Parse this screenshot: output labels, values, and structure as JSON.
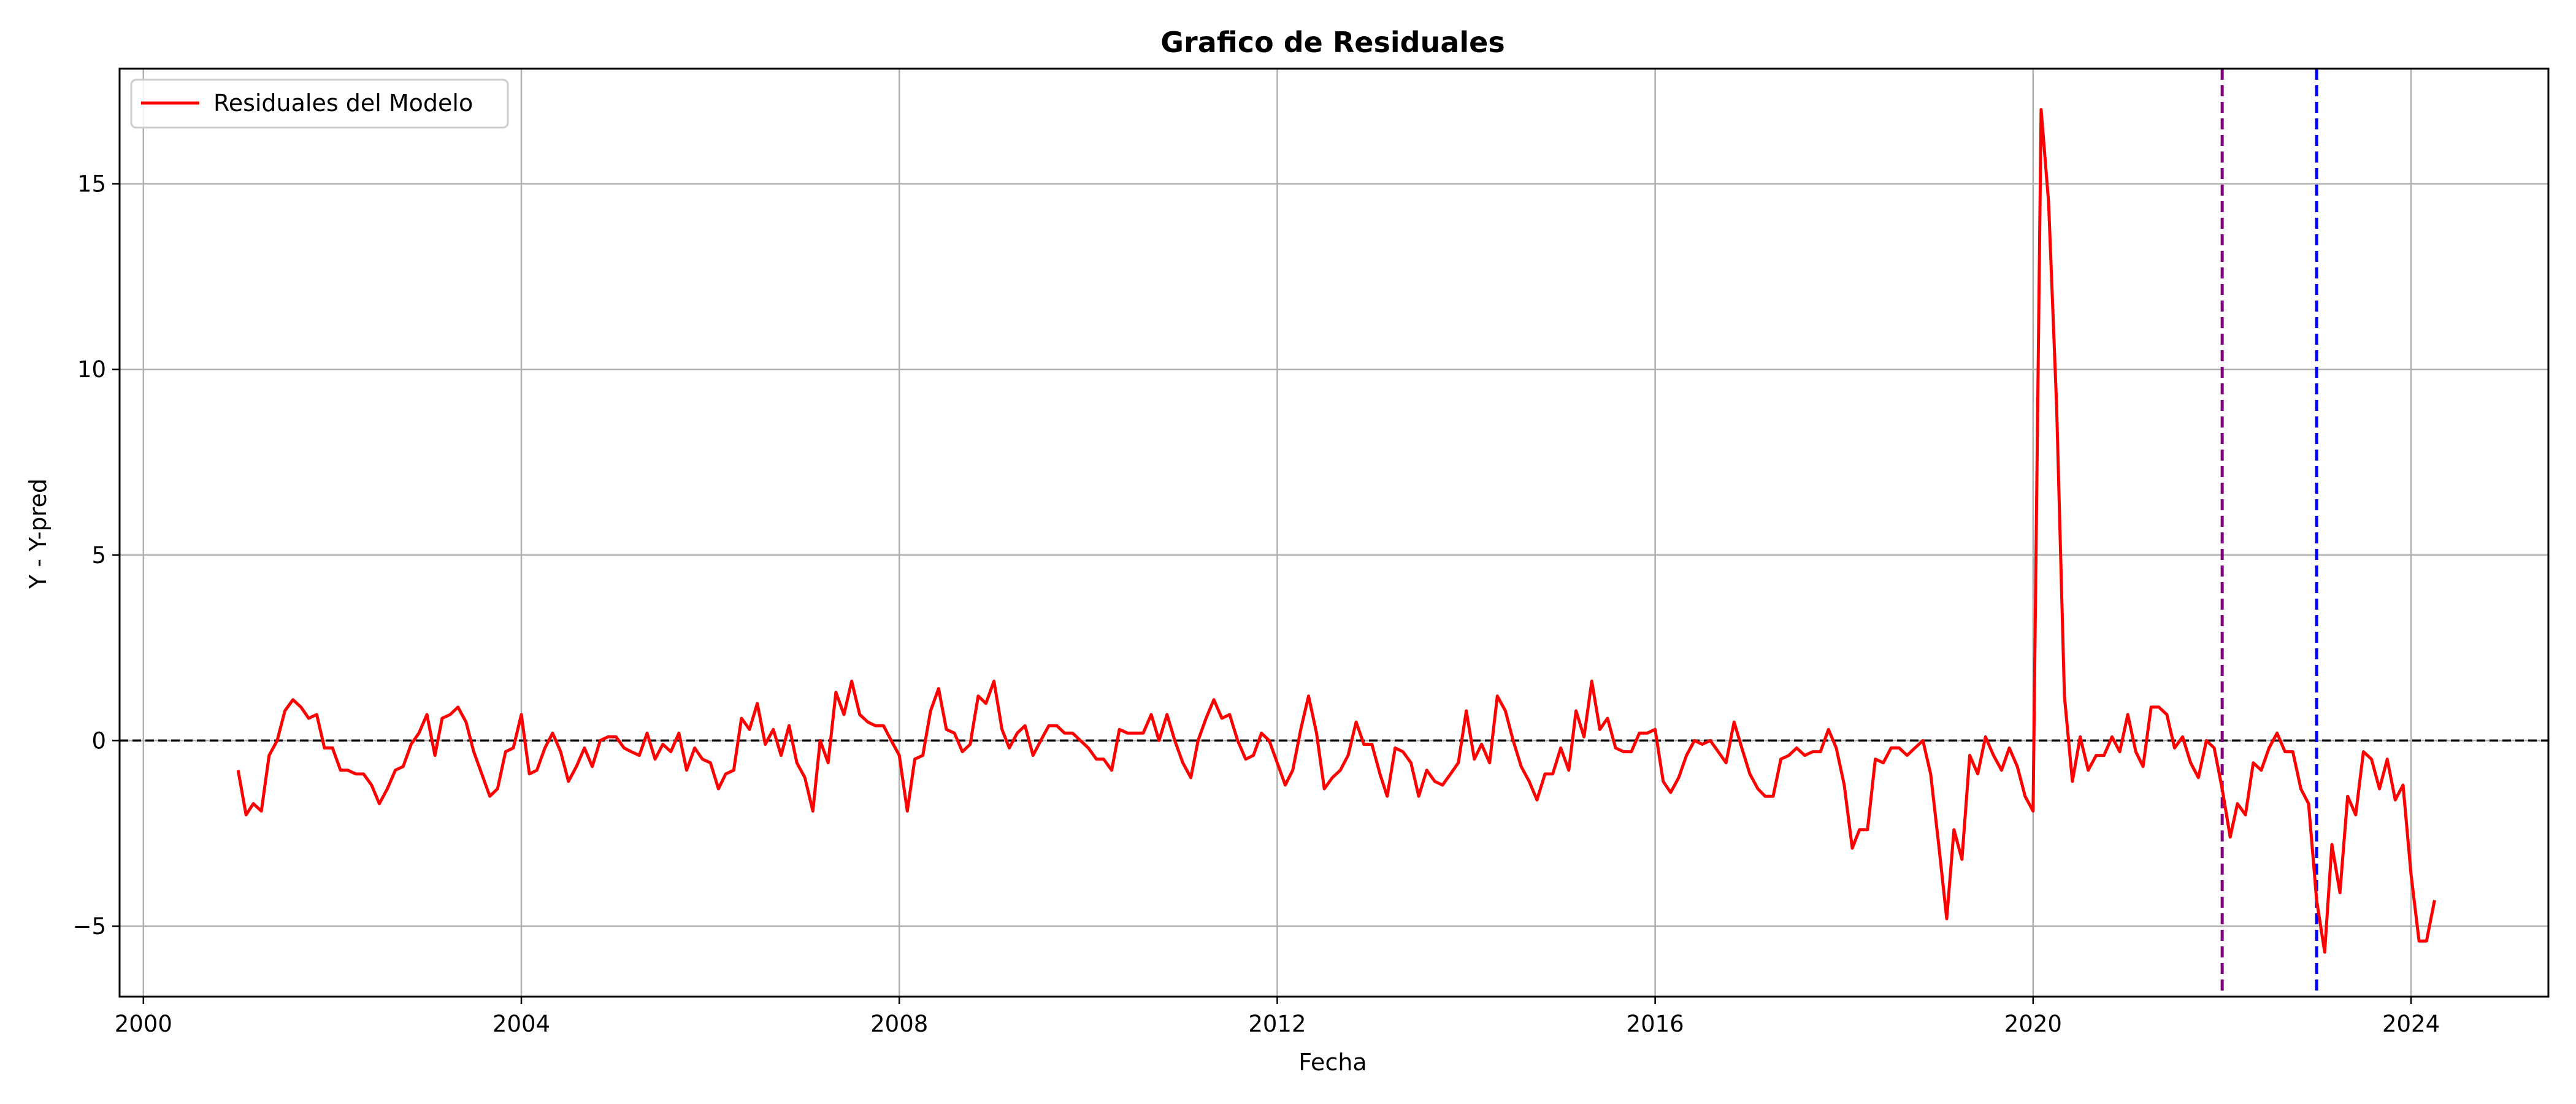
{
  "chart_data": {
    "type": "line",
    "title": "Grafico de Residuales",
    "xlabel": "Fecha",
    "ylabel": "Y - Y-pred",
    "xlim": [
      "1999-10-01",
      "2025-06-15"
    ],
    "ylim": [
      -6.9,
      18.1
    ],
    "x_ticks": [
      "2000",
      "2004",
      "2008",
      "2012",
      "2016",
      "2020",
      "2024"
    ],
    "y_ticks": [
      -5,
      0,
      5,
      10,
      15
    ],
    "y_tick_labels": [
      "−5",
      "0",
      "5",
      "10",
      "15"
    ],
    "grid": true,
    "legend": {
      "location": "upper-left"
    },
    "reference_lines": [
      {
        "orientation": "horizontal",
        "value": 0,
        "color": "#000000",
        "style": "dashed"
      },
      {
        "orientation": "vertical",
        "date": "2022-01-01",
        "color": "#800080",
        "style": "dashed"
      },
      {
        "orientation": "vertical",
        "date": "2023-01-01",
        "color": "#0000ff",
        "style": "dashed"
      }
    ],
    "series": [
      {
        "name": "Residuales del Modelo",
        "color": "#ff0000",
        "start": "2001-01",
        "frequency": "monthly",
        "values": [
          -0.8,
          -2.0,
          -1.7,
          -1.9,
          -0.4,
          0.0,
          0.8,
          1.1,
          0.9,
          0.6,
          0.7,
          -0.2,
          -0.2,
          -0.8,
          -0.8,
          -0.9,
          -0.9,
          -1.2,
          -1.7,
          -1.3,
          -0.8,
          -0.7,
          -0.1,
          0.2,
          0.7,
          -0.4,
          0.6,
          0.7,
          0.9,
          0.5,
          -0.3,
          -0.9,
          -1.5,
          -1.3,
          -0.3,
          -0.2,
          0.7,
          -0.9,
          -0.8,
          -0.2,
          0.2,
          -0.3,
          -1.1,
          -0.7,
          -0.2,
          -0.7,
          0.0,
          0.1,
          0.1,
          -0.2,
          -0.3,
          -0.4,
          0.2,
          -0.5,
          -0.1,
          -0.3,
          0.2,
          -0.8,
          -0.2,
          -0.5,
          -0.6,
          -1.3,
          -0.9,
          -0.8,
          0.6,
          0.3,
          1.0,
          -0.1,
          0.3,
          -0.4,
          0.4,
          -0.6,
          -1.0,
          -1.9,
          0.0,
          -0.6,
          1.3,
          0.7,
          1.6,
          0.7,
          0.5,
          0.4,
          0.4,
          0.0,
          -0.4,
          -1.9,
          -0.5,
          -0.4,
          0.8,
          1.4,
          0.3,
          0.2,
          -0.3,
          -0.1,
          1.2,
          1.0,
          1.6,
          0.3,
          -0.2,
          0.2,
          0.4,
          -0.4,
          0.0,
          0.4,
          0.4,
          0.2,
          0.2,
          0.0,
          -0.2,
          -0.5,
          -0.5,
          -0.8,
          0.3,
          0.2,
          0.2,
          0.2,
          0.7,
          0.0,
          0.7,
          0.0,
          -0.6,
          -1.0,
          0.0,
          0.6,
          1.1,
          0.6,
          0.7,
          0.0,
          -0.5,
          -0.4,
          0.2,
          0.0,
          -0.6,
          -1.2,
          -0.8,
          0.3,
          1.2,
          0.2,
          -1.3,
          -1.0,
          -0.8,
          -0.4,
          0.5,
          -0.1,
          -0.1,
          -0.9,
          -1.5,
          -0.2,
          -0.3,
          -0.6,
          -1.5,
          -0.8,
          -1.1,
          -1.2,
          -0.9,
          -0.6,
          0.8,
          -0.5,
          -0.1,
          -0.6,
          1.2,
          0.8,
          0.0,
          -0.7,
          -1.1,
          -1.6,
          -0.9,
          -0.9,
          -0.2,
          -0.8,
          0.8,
          0.1,
          1.6,
          0.3,
          0.6,
          -0.2,
          -0.3,
          -0.3,
          0.2,
          0.2,
          0.3,
          -1.1,
          -1.4,
          -1.0,
          -0.4,
          0.0,
          -0.1,
          0.0,
          -0.3,
          -0.6,
          0.5,
          -0.2,
          -0.9,
          -1.3,
          -1.5,
          -1.5,
          -0.5,
          -0.4,
          -0.2,
          -0.4,
          -0.3,
          -0.3,
          0.3,
          -0.2,
          -1.2,
          -2.9,
          -2.4,
          -2.4,
          -0.5,
          -0.6,
          -0.2,
          -0.2,
          -0.4,
          -0.2,
          0.0,
          -0.9,
          -2.8,
          -4.8,
          -2.4,
          -3.2,
          -0.4,
          -0.9,
          0.1,
          -0.4,
          -0.8,
          -0.2,
          -0.7,
          -1.5,
          -1.9,
          17.0,
          14.5,
          9.0,
          1.2,
          -1.1,
          0.1,
          -0.8,
          -0.4,
          -0.4,
          0.1,
          -0.3,
          0.7,
          -0.3,
          -0.7,
          0.9,
          0.9,
          0.7,
          -0.2,
          0.1,
          -0.6,
          -1.0,
          0.0,
          -0.2,
          -1.3,
          -2.6,
          -1.7,
          -2.0,
          -0.6,
          -0.8,
          -0.2,
          0.2,
          -0.3,
          -0.3,
          -1.3,
          -1.7,
          -4.3,
          -5.7,
          -2.8,
          -4.1,
          -1.5,
          -2.0,
          -0.3,
          -0.5,
          -1.3,
          -0.5,
          -1.6,
          -1.2,
          -3.6,
          -5.4,
          -5.4,
          -4.3
        ]
      }
    ]
  }
}
